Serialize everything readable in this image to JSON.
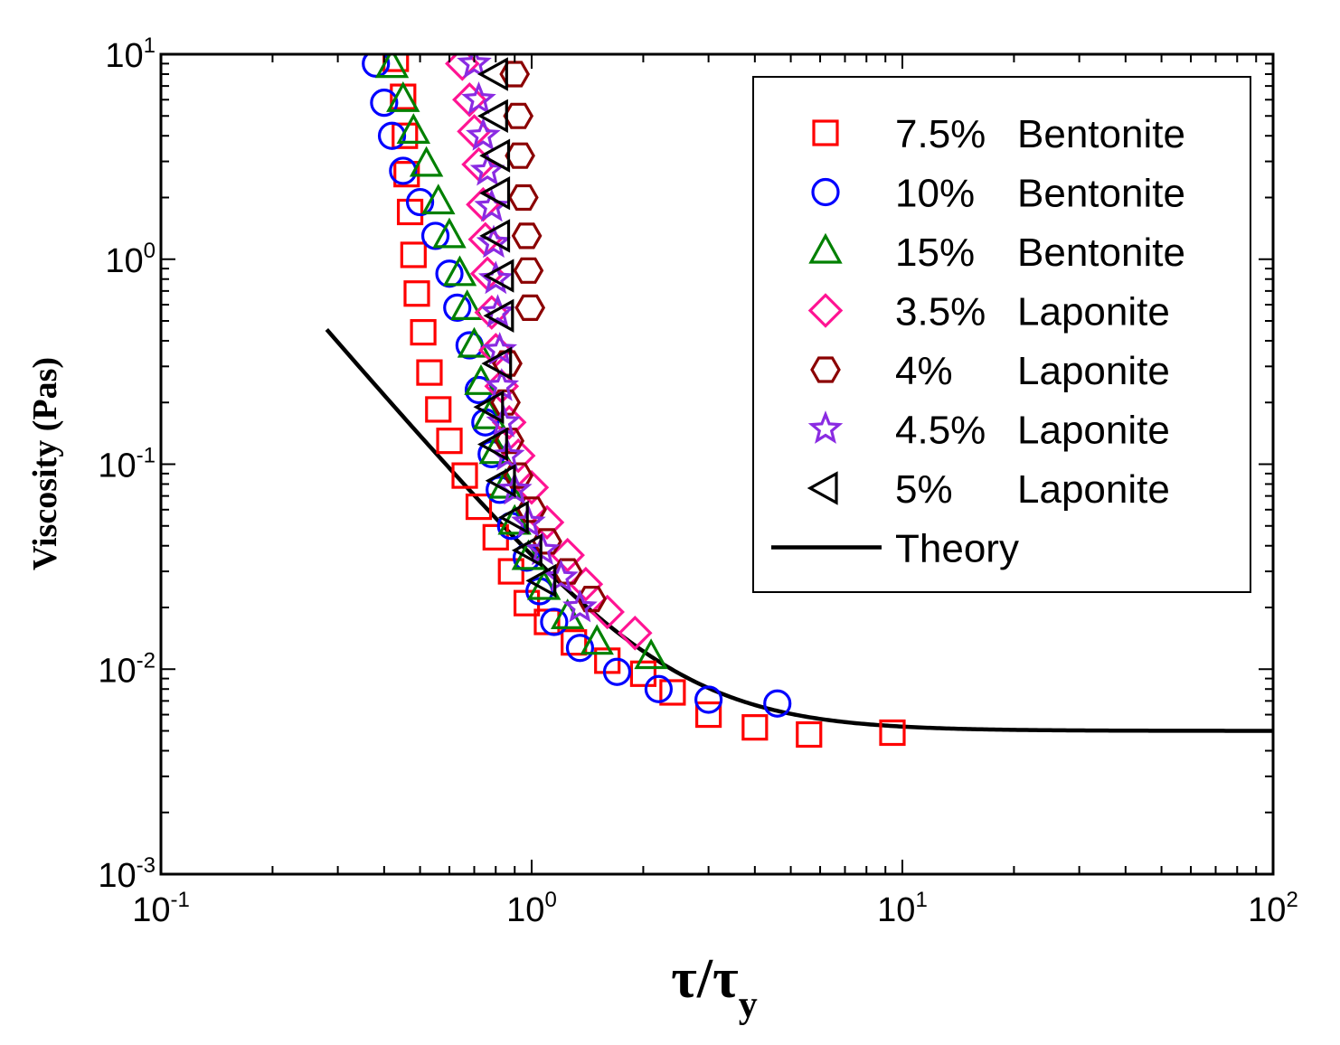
{
  "chart_data": {
    "type": "scatter",
    "xlabel": {
      "main": "τ/τ",
      "sub": "y"
    },
    "ylabel": "Viscosity (Pas)",
    "xscale": "log",
    "yscale": "log",
    "xlim": [
      0.1,
      100
    ],
    "ylim": [
      0.001,
      10
    ],
    "xticks": [
      {
        "base": "10",
        "exp": "-1",
        "value": 0.1
      },
      {
        "base": "10",
        "exp": "0",
        "value": 1
      },
      {
        "base": "10",
        "exp": "1",
        "value": 10
      },
      {
        "base": "10",
        "exp": "2",
        "value": 100
      }
    ],
    "yticks": [
      {
        "base": "10",
        "exp": "-3",
        "value": 0.001
      },
      {
        "base": "10",
        "exp": "-2",
        "value": 0.01
      },
      {
        "base": "10",
        "exp": "-1",
        "value": 0.1
      },
      {
        "base": "10",
        "exp": "0",
        "value": 1
      },
      {
        "base": "10",
        "exp": "1",
        "value": 10
      }
    ],
    "grid": false,
    "legend_position": "top-right",
    "series": [
      {
        "name": "7.5% Bentonite",
        "marker": "square",
        "color": "#ff0000",
        "points": [
          [
            0.43,
            9.5
          ],
          [
            0.45,
            6.2
          ],
          [
            0.455,
            4.0
          ],
          [
            0.46,
            2.6
          ],
          [
            0.47,
            1.7
          ],
          [
            0.48,
            1.05
          ],
          [
            0.49,
            0.68
          ],
          [
            0.51,
            0.44
          ],
          [
            0.53,
            0.28
          ],
          [
            0.56,
            0.185
          ],
          [
            0.6,
            0.13
          ],
          [
            0.66,
            0.088
          ],
          [
            0.72,
            0.062
          ],
          [
            0.8,
            0.044
          ],
          [
            0.88,
            0.03
          ],
          [
            0.97,
            0.021
          ],
          [
            1.1,
            0.017
          ],
          [
            1.3,
            0.0135
          ],
          [
            1.6,
            0.011
          ],
          [
            2.0,
            0.0095
          ],
          [
            2.4,
            0.0077
          ],
          [
            3.0,
            0.006
          ],
          [
            4.0,
            0.0052
          ],
          [
            5.6,
            0.0048
          ],
          [
            9.4,
            0.0049
          ]
        ]
      },
      {
        "name": "10% Bentonite",
        "marker": "circle",
        "color": "#0000ff",
        "points": [
          [
            0.38,
            9.0
          ],
          [
            0.4,
            5.8
          ],
          [
            0.42,
            4.0
          ],
          [
            0.45,
            2.7
          ],
          [
            0.5,
            1.9
          ],
          [
            0.55,
            1.3
          ],
          [
            0.6,
            0.85
          ],
          [
            0.63,
            0.58
          ],
          [
            0.68,
            0.38
          ],
          [
            0.72,
            0.23
          ],
          [
            0.75,
            0.16
          ],
          [
            0.78,
            0.112
          ],
          [
            0.82,
            0.075
          ],
          [
            0.88,
            0.05
          ],
          [
            0.97,
            0.035
          ],
          [
            1.05,
            0.024
          ],
          [
            1.15,
            0.017
          ],
          [
            1.35,
            0.0127
          ],
          [
            1.7,
            0.0097
          ],
          [
            2.2,
            0.008
          ],
          [
            3.0,
            0.0071
          ],
          [
            4.6,
            0.0068
          ]
        ]
      },
      {
        "name": "15% Bentonite",
        "marker": "triangle-up",
        "color": "#008000",
        "points": [
          [
            0.42,
            8.8
          ],
          [
            0.45,
            6.0
          ],
          [
            0.48,
            4.2
          ],
          [
            0.52,
            2.9
          ],
          [
            0.56,
            1.9
          ],
          [
            0.6,
            1.3
          ],
          [
            0.64,
            0.85
          ],
          [
            0.67,
            0.58
          ],
          [
            0.7,
            0.38
          ],
          [
            0.73,
            0.25
          ],
          [
            0.77,
            0.17
          ],
          [
            0.8,
            0.115
          ],
          [
            0.85,
            0.078
          ],
          [
            0.9,
            0.052
          ],
          [
            0.98,
            0.035
          ],
          [
            1.08,
            0.025
          ],
          [
            1.25,
            0.018
          ],
          [
            1.5,
            0.0135
          ],
          [
            2.1,
            0.0115
          ]
        ]
      },
      {
        "name": "3.5% Laponite",
        "marker": "diamond",
        "color": "#ff1493",
        "points": [
          [
            0.65,
            9.0
          ],
          [
            0.68,
            6.0
          ],
          [
            0.7,
            4.2
          ],
          [
            0.72,
            2.9
          ],
          [
            0.74,
            1.85
          ],
          [
            0.75,
            1.25
          ],
          [
            0.76,
            0.85
          ],
          [
            0.78,
            0.55
          ],
          [
            0.8,
            0.36
          ],
          [
            0.83,
            0.24
          ],
          [
            0.87,
            0.16
          ],
          [
            0.92,
            0.11
          ],
          [
            1.0,
            0.077
          ],
          [
            1.1,
            0.052
          ],
          [
            1.25,
            0.036
          ],
          [
            1.4,
            0.026
          ],
          [
            1.6,
            0.019
          ],
          [
            1.9,
            0.015
          ]
        ]
      },
      {
        "name": "4% Laponite",
        "marker": "hexagon",
        "color": "#8b0000",
        "points": [
          [
            0.9,
            8.0
          ],
          [
            0.92,
            5.0
          ],
          [
            0.93,
            3.2
          ],
          [
            0.95,
            2.0
          ],
          [
            0.97,
            1.3
          ],
          [
            0.98,
            0.88
          ],
          [
            0.99,
            0.58
          ],
          [
            0.86,
            0.31
          ],
          [
            0.85,
            0.2
          ],
          [
            0.87,
            0.13
          ],
          [
            0.92,
            0.088
          ],
          [
            1.0,
            0.06
          ],
          [
            1.1,
            0.042
          ],
          [
            1.25,
            0.03
          ],
          [
            1.45,
            0.022
          ]
        ]
      },
      {
        "name": "4.5% Laponite",
        "marker": "star",
        "color": "#8a2be2",
        "points": [
          [
            0.7,
            9.0
          ],
          [
            0.72,
            6.0
          ],
          [
            0.74,
            4.0
          ],
          [
            0.76,
            2.7
          ],
          [
            0.78,
            1.8
          ],
          [
            0.79,
            1.2
          ],
          [
            0.8,
            0.8
          ],
          [
            0.81,
            0.55
          ],
          [
            0.82,
            0.36
          ],
          [
            0.83,
            0.24
          ],
          [
            0.84,
            0.16
          ],
          [
            0.86,
            0.11
          ],
          [
            0.9,
            0.075
          ],
          [
            0.98,
            0.052
          ],
          [
            1.07,
            0.038
          ],
          [
            1.2,
            0.028
          ],
          [
            1.35,
            0.02
          ]
        ]
      },
      {
        "name": "5% Laponite",
        "marker": "triangle-left",
        "color": "#000000",
        "points": [
          [
            0.8,
            8.0
          ],
          [
            0.8,
            5.0
          ],
          [
            0.81,
            3.2
          ],
          [
            0.81,
            2.1
          ],
          [
            0.81,
            1.3
          ],
          [
            0.83,
            0.83
          ],
          [
            0.83,
            0.53
          ],
          [
            0.82,
            0.31
          ],
          [
            0.78,
            0.19
          ],
          [
            0.8,
            0.125
          ],
          [
            0.84,
            0.083
          ],
          [
            0.91,
            0.055
          ],
          [
            0.99,
            0.038
          ],
          [
            1.08,
            0.027
          ]
        ]
      }
    ],
    "theory": {
      "name": "Theory",
      "color": "#000000",
      "eta_inf": 0.005,
      "slope": 2.1,
      "reference_viscosity": 0.031
    }
  }
}
